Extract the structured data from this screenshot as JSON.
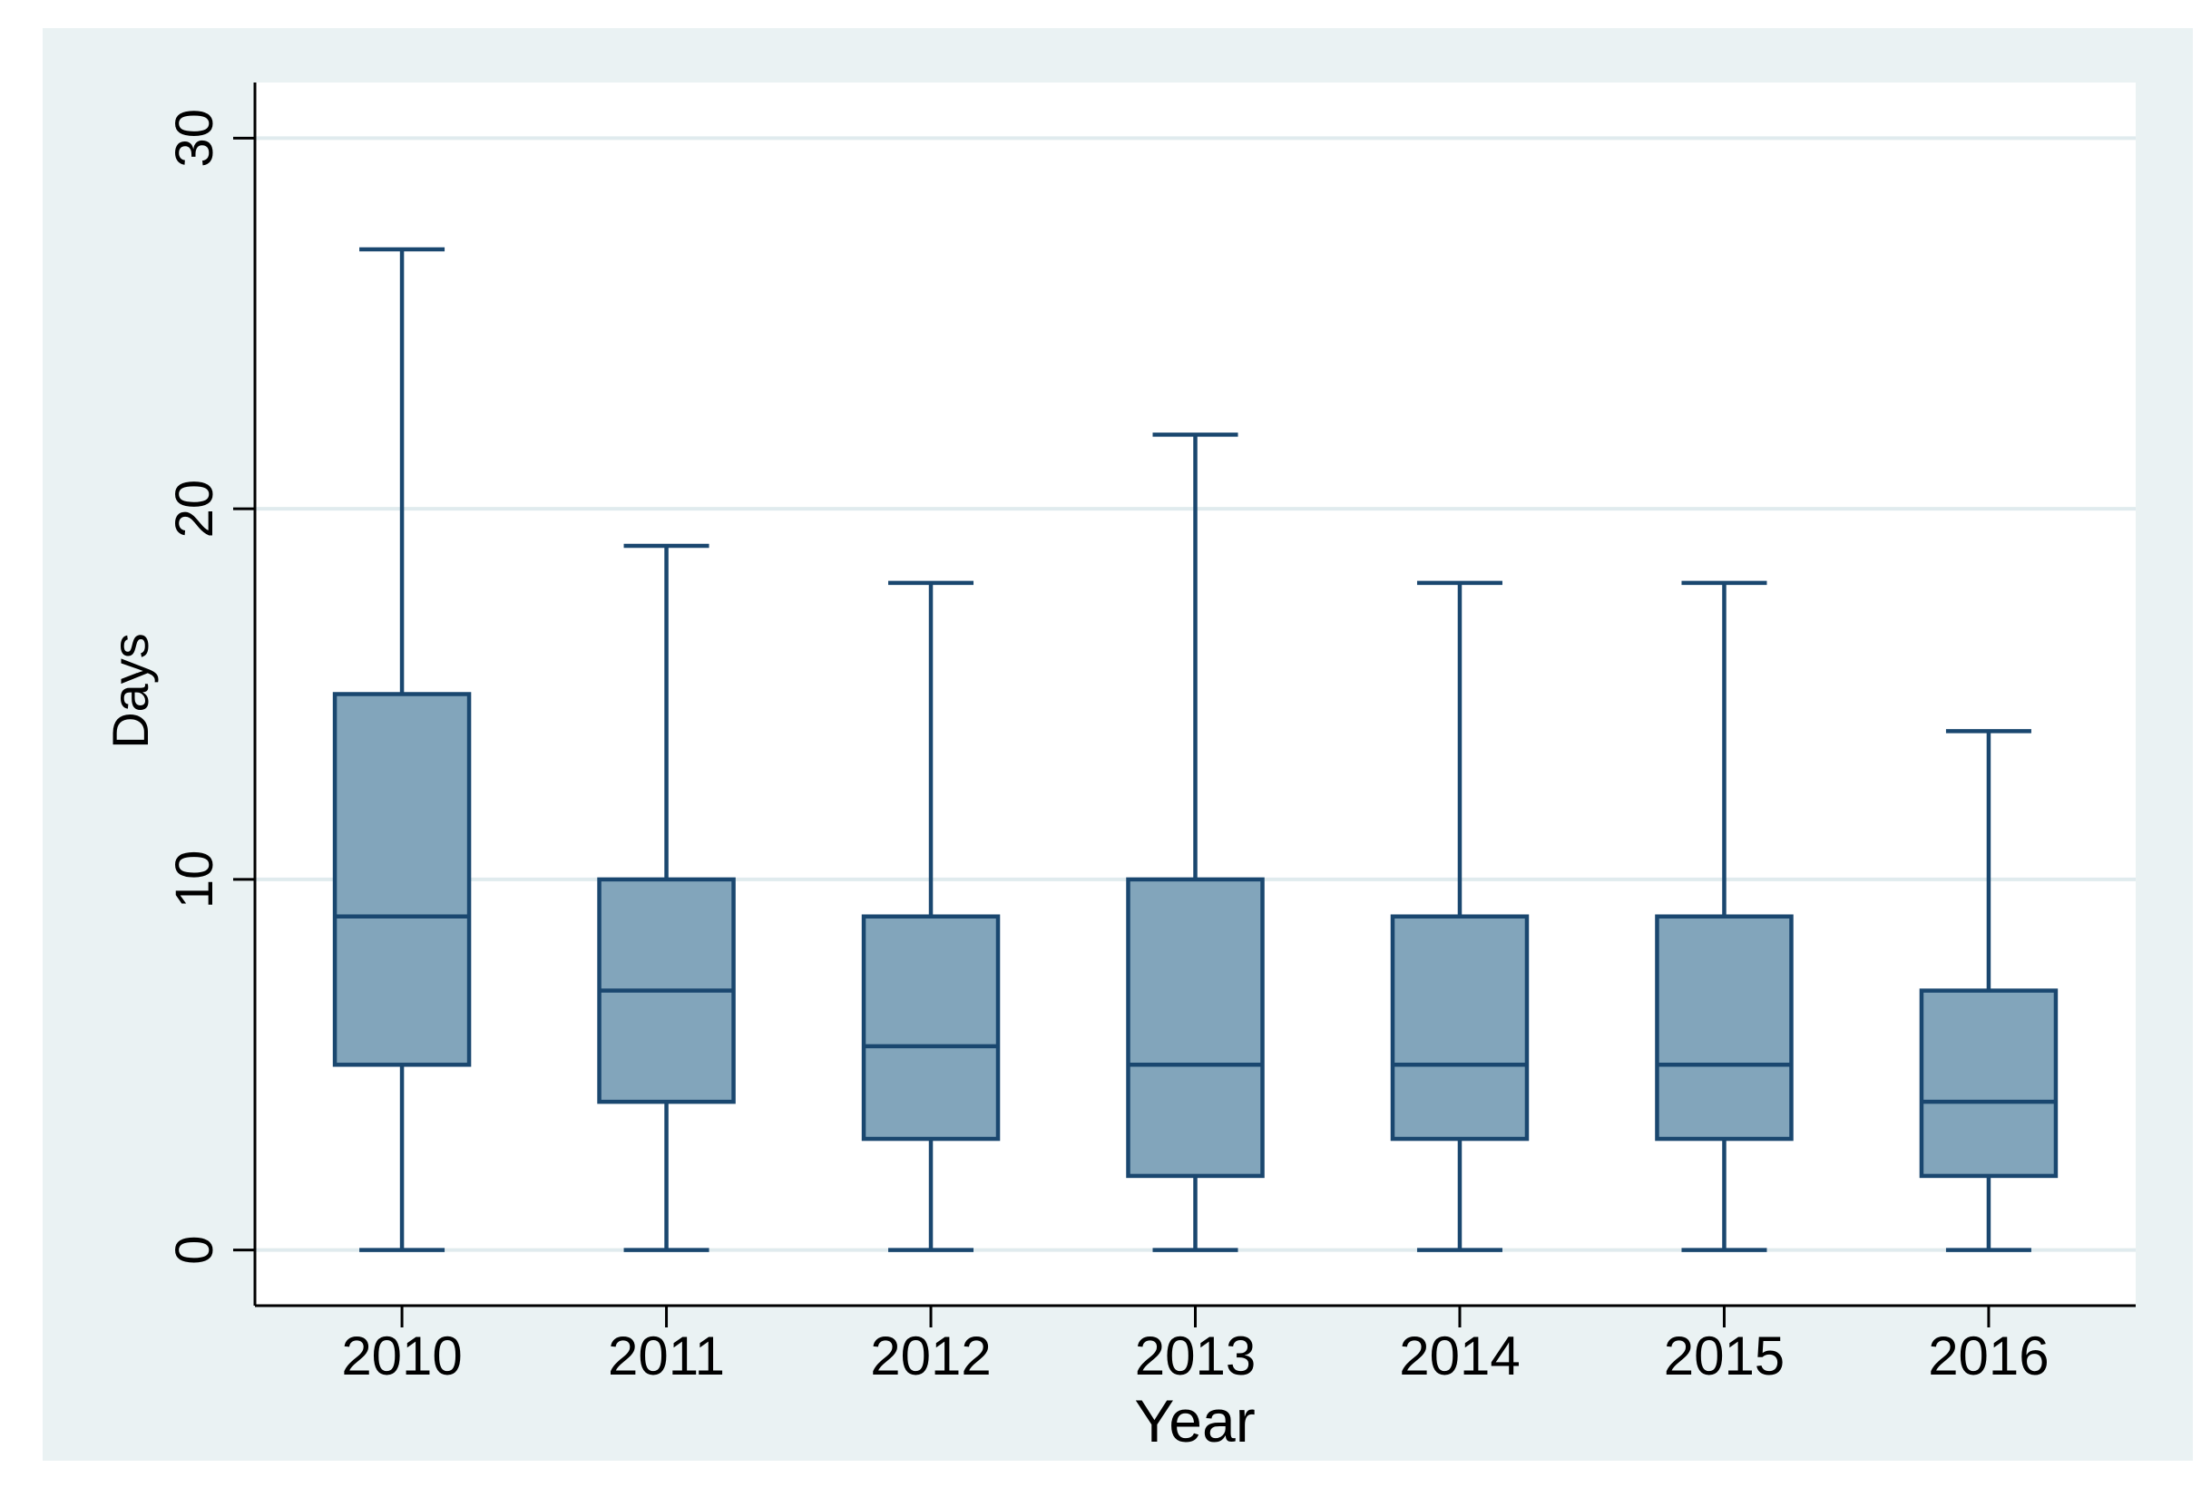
{
  "chart_data": {
    "type": "box",
    "categories": [
      "2010",
      "2011",
      "2012",
      "2013",
      "2014",
      "2015",
      "2016"
    ],
    "boxes": [
      {
        "min": 0,
        "q1": 5,
        "median": 9,
        "q3": 15,
        "max": 27
      },
      {
        "min": 0,
        "q1": 4,
        "median": 7,
        "q3": 10,
        "max": 19
      },
      {
        "min": 0,
        "q1": 3,
        "median": 5.5,
        "q3": 9,
        "max": 18
      },
      {
        "min": 0,
        "q1": 2,
        "median": 5,
        "q3": 10,
        "max": 22
      },
      {
        "min": 0,
        "q1": 3,
        "median": 5,
        "q3": 9,
        "max": 18
      },
      {
        "min": 0,
        "q1": 3,
        "median": 5,
        "q3": 9,
        "max": 18
      },
      {
        "min": 0,
        "q1": 2,
        "median": 4,
        "q3": 7,
        "max": 14
      }
    ],
    "xlabel": "Year",
    "ylabel": "Days",
    "ylim": [
      -1.5,
      31.5
    ],
    "y_ticks": [
      0,
      10,
      20,
      30
    ],
    "grid": true
  },
  "colors": {
    "graph_background": "#eaf2f3",
    "plot_background": "#ffffff",
    "grid": "#e0ebee",
    "axis": "#000000",
    "box_fill": "#82a5bb",
    "box_line": "#1a476f"
  }
}
